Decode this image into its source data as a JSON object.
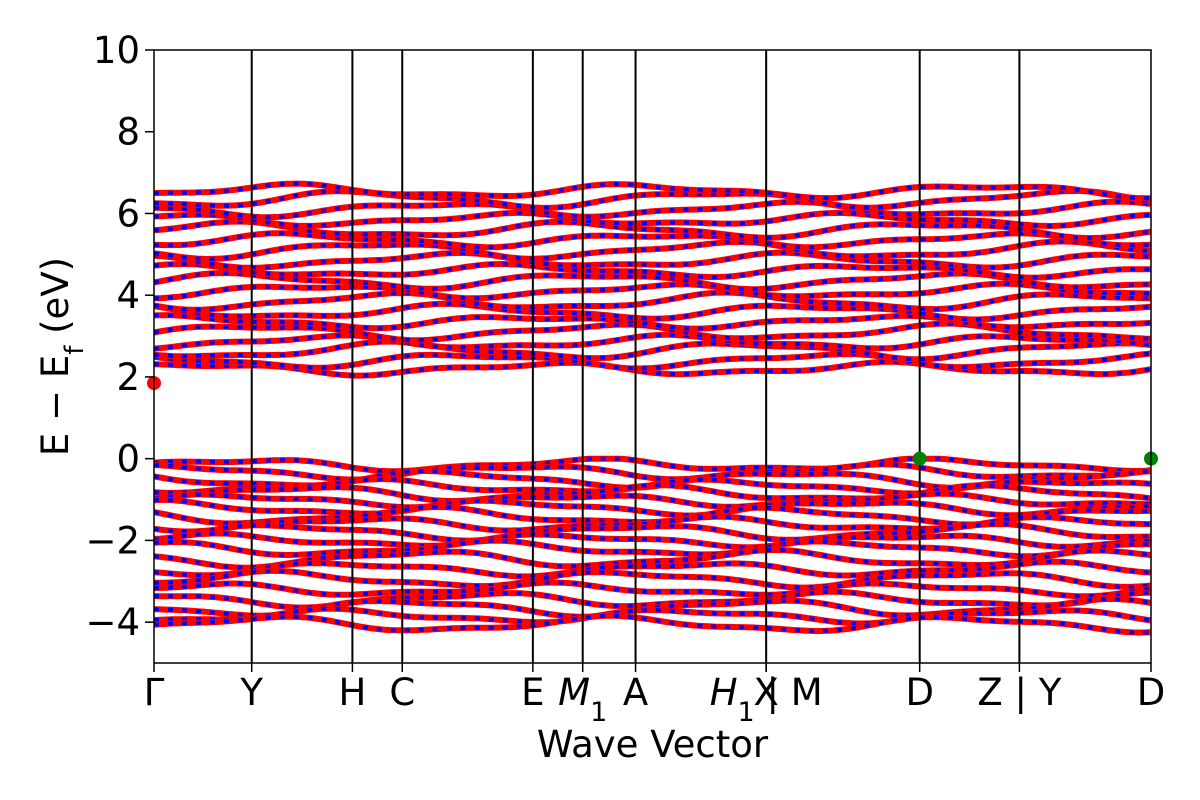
{
  "chart_data": {
    "type": "line",
    "xlabel": "Wave Vector",
    "ylabel": "E − E",
    "ylabel_sub": "f",
    "ylabel_unit": " (eV)",
    "ylim": [
      -5,
      10
    ],
    "yticks": [
      -4,
      -2,
      0,
      2,
      4,
      6,
      8,
      10
    ],
    "ytick_labels": [
      "−4",
      "−2",
      "0",
      "2",
      "4",
      "6",
      "8",
      "10"
    ],
    "xlim": [
      0,
      100
    ],
    "kpoints": [
      {
        "x": 0.0,
        "label": "Γ"
      },
      {
        "x": 9.8,
        "label": "Y"
      },
      {
        "x": 19.9,
        "label": "H"
      },
      {
        "x": 24.9,
        "label": "C"
      },
      {
        "x": 38.0,
        "label": "E"
      },
      {
        "x": 43.0,
        "label": "M",
        "sub": "1"
      },
      {
        "x": 48.3,
        "label": "A"
      },
      {
        "x": 61.4,
        "label": "X"
      },
      {
        "x": 61.4,
        "label": "H",
        "sub": "1",
        "prefix_bar": false,
        "suffix": " | M"
      },
      {
        "x": 76.8,
        "label": "D"
      },
      {
        "x": 86.8,
        "label": "Z | Y"
      },
      {
        "x": 100.0,
        "label": "D"
      }
    ],
    "band_color": "#ff0000",
    "projection_color": "#0000ff",
    "valence_band_energies": [
      -0.15,
      -0.32,
      -0.5,
      -0.68,
      -0.85,
      -1.02,
      -1.2,
      -1.4,
      -1.6,
      -1.8,
      -2.0,
      -2.2,
      -2.45,
      -2.7,
      -2.95,
      -3.2,
      -3.45,
      -3.65,
      -3.85,
      -4.05
    ],
    "conduction_band_energies": [
      2.2,
      2.4,
      2.65,
      2.85,
      3.1,
      3.35,
      3.6,
      3.85,
      4.1,
      4.35,
      4.6,
      4.85,
      5.1,
      5.35,
      5.6,
      5.85,
      6.1,
      6.35,
      6.55
    ],
    "vbm_markers": [
      {
        "x": 76.8,
        "y": 0.0
      },
      {
        "x": 100.0,
        "y": 0.0
      }
    ],
    "cbm_marker": {
      "x": 0.0,
      "y": 1.85
    },
    "vbm_color": "#008000",
    "cbm_color": "#ff0000"
  }
}
